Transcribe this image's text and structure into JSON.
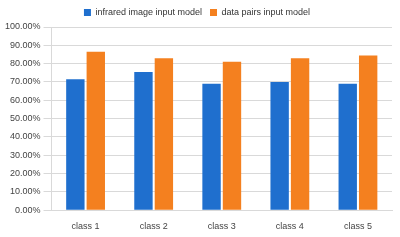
{
  "chart_data": {
    "type": "bar",
    "categories": [
      "class 1",
      "class 2",
      "class 3",
      "class 4",
      "class 5"
    ],
    "series": [
      {
        "name": "infrared image input model",
        "color": "#1f6fce",
        "values": [
          71.5,
          75.5,
          69,
          70,
          69
        ]
      },
      {
        "name": "data pairs input model",
        "color": "#f4801f",
        "values": [
          86.5,
          83,
          81,
          83,
          84.5
        ]
      }
    ],
    "ylim": [
      0,
      100
    ],
    "yticks": [
      {
        "value": 0,
        "label": "0.00%"
      },
      {
        "value": 10,
        "label": "10.00%"
      },
      {
        "value": 20,
        "label": "20.00%"
      },
      {
        "value": 30,
        "label": "30.00%"
      },
      {
        "value": 40,
        "label": "40.00%"
      },
      {
        "value": 50,
        "label": "50.00%"
      },
      {
        "value": 60,
        "label": "60.00%"
      },
      {
        "value": 70,
        "label": "70.00%"
      },
      {
        "value": 80,
        "label": "80.00%"
      },
      {
        "value": 90,
        "label": "90.00%"
      },
      {
        "value": 100,
        "label": "100.00%"
      }
    ],
    "grid": true,
    "legend": "top"
  }
}
